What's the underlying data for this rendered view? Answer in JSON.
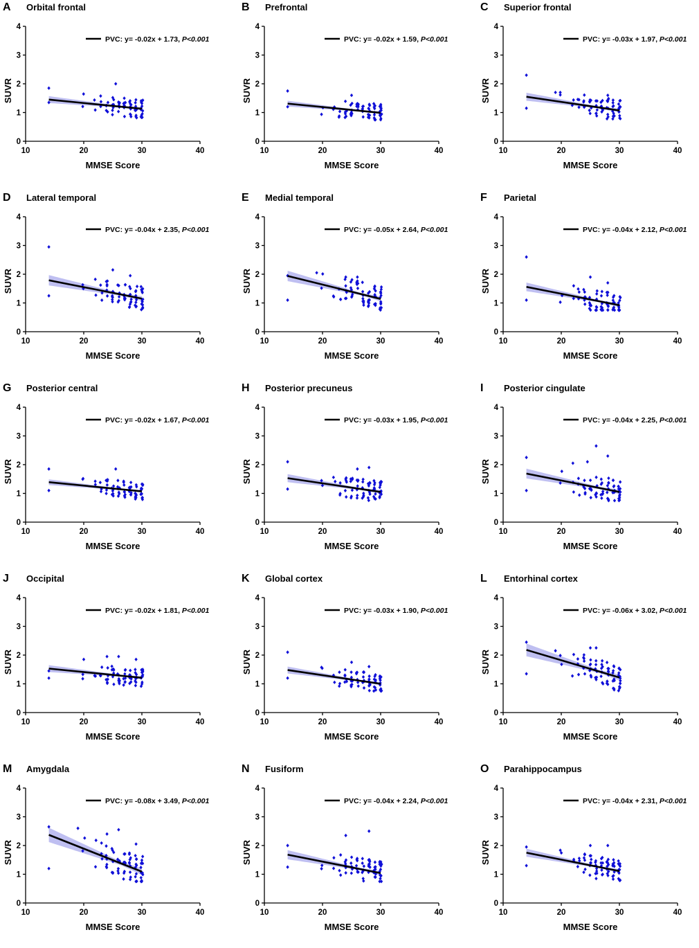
{
  "figure": {
    "label": "SUVR vs MMSE score by region (PVC)"
  },
  "chart_data": [
    {
      "id": "A",
      "type": "scatter",
      "title": "Orbital frontal",
      "xlabel": "MMSE Score",
      "ylabel": "SUVR",
      "xlim": [
        10,
        40
      ],
      "ylim": [
        0,
        4
      ],
      "xticks": [
        10,
        20,
        30,
        40
      ],
      "yticks": [
        0,
        1,
        2,
        3,
        4
      ],
      "legend": "PVC: y= -0.02x + 1.73, ",
      "p_label": "P<0.001",
      "fit": {
        "slope": -0.02,
        "intercept": 1.73
      },
      "band": 0.12,
      "outliers": [
        [
          14,
          1.85
        ],
        [
          14,
          1.35
        ],
        [
          25.5,
          2.0
        ]
      ]
    },
    {
      "id": "B",
      "type": "scatter",
      "title": "Prefrontal",
      "xlabel": "MMSE Score",
      "ylabel": "SUVR",
      "xlim": [
        10,
        40
      ],
      "ylim": [
        0,
        4
      ],
      "xticks": [
        10,
        20,
        30,
        40
      ],
      "yticks": [
        0,
        1,
        2,
        3,
        4
      ],
      "legend": "PVC: y= -0.02x + 1.59, ",
      "p_label": "P<0.001",
      "fit": {
        "slope": -0.02,
        "intercept": 1.59
      },
      "band": 0.1,
      "outliers": [
        [
          14,
          1.75
        ],
        [
          14,
          1.2
        ],
        [
          25,
          1.6
        ]
      ]
    },
    {
      "id": "C",
      "type": "scatter",
      "title": "Superior frontal",
      "xlabel": "MMSE Score",
      "ylabel": "SUVR",
      "xlim": [
        10,
        40
      ],
      "ylim": [
        0,
        4
      ],
      "xticks": [
        10,
        20,
        30,
        40
      ],
      "yticks": [
        0,
        1,
        2,
        3,
        4
      ],
      "legend": "PVC: y= -0.03x + 1.97, ",
      "p_label": "P<0.001",
      "fit": {
        "slope": -0.03,
        "intercept": 1.97
      },
      "band": 0.14,
      "outliers": [
        [
          14,
          2.3
        ],
        [
          14,
          1.15
        ],
        [
          19,
          1.7
        ],
        [
          28,
          1.6
        ]
      ]
    },
    {
      "id": "D",
      "type": "scatter",
      "title": "Lateral temporal",
      "xlabel": "MMSE Score",
      "ylabel": "SUVR",
      "xlim": [
        10,
        40
      ],
      "ylim": [
        0,
        4
      ],
      "xticks": [
        10,
        20,
        30,
        40
      ],
      "yticks": [
        0,
        1,
        2,
        3,
        4
      ],
      "legend": "PVC: y= -0.04x + 2.35, ",
      "p_label": "P<0.001",
      "fit": {
        "slope": -0.04,
        "intercept": 2.35
      },
      "band": 0.18,
      "outliers": [
        [
          14,
          2.95
        ],
        [
          14,
          1.25
        ],
        [
          25,
          2.15
        ],
        [
          28,
          1.95
        ]
      ]
    },
    {
      "id": "E",
      "type": "scatter",
      "title": "Medial temporal",
      "xlabel": "MMSE Score",
      "ylabel": "SUVR",
      "xlim": [
        10,
        40
      ],
      "ylim": [
        0,
        4
      ],
      "xticks": [
        10,
        20,
        30,
        40
      ],
      "yticks": [
        0,
        1,
        2,
        3,
        4
      ],
      "legend": "PVC: y= -0.05x + 2.64, ",
      "p_label": "P<0.001",
      "fit": {
        "slope": -0.05,
        "intercept": 2.64
      },
      "band": 0.18,
      "outliers": [
        [
          14,
          1.95
        ],
        [
          14,
          1.1
        ],
        [
          19,
          2.05
        ],
        [
          24,
          1.9
        ],
        [
          26,
          1.9
        ]
      ]
    },
    {
      "id": "F",
      "type": "scatter",
      "title": "Parietal",
      "xlabel": "MMSE Score",
      "ylabel": "SUVR",
      "xlim": [
        10,
        40
      ],
      "ylim": [
        0,
        4
      ],
      "xticks": [
        10,
        20,
        30,
        40
      ],
      "yticks": [
        0,
        1,
        2,
        3,
        4
      ],
      "legend": "PVC: y= -0.04x + 2.12, ",
      "p_label": "P<0.001",
      "fit": {
        "slope": -0.04,
        "intercept": 2.12
      },
      "band": 0.15,
      "outliers": [
        [
          14,
          2.6
        ],
        [
          14,
          1.1
        ],
        [
          25,
          1.9
        ],
        [
          28,
          1.7
        ]
      ]
    },
    {
      "id": "G",
      "type": "scatter",
      "title": "Posterior central",
      "xlabel": "MMSE Score",
      "ylabel": "SUVR",
      "xlim": [
        10,
        40
      ],
      "ylim": [
        0,
        4
      ],
      "xticks": [
        10,
        20,
        30,
        40
      ],
      "yticks": [
        0,
        1,
        2,
        3,
        4
      ],
      "legend": "PVC: y= -0.02x + 1.67, ",
      "p_label": "P<0.001",
      "fit": {
        "slope": -0.02,
        "intercept": 1.67
      },
      "band": 0.1,
      "outliers": [
        [
          14,
          1.85
        ],
        [
          14,
          1.1
        ],
        [
          25.5,
          1.85
        ]
      ]
    },
    {
      "id": "H",
      "type": "scatter",
      "title": "Posterior precuneus",
      "xlabel": "MMSE Score",
      "ylabel": "SUVR",
      "xlim": [
        10,
        40
      ],
      "ylim": [
        0,
        4
      ],
      "xticks": [
        10,
        20,
        30,
        40
      ],
      "yticks": [
        0,
        1,
        2,
        3,
        4
      ],
      "legend": "PVC: y= -0.03x + 1.95, ",
      "p_label": "P<0.001",
      "fit": {
        "slope": -0.03,
        "intercept": 1.95
      },
      "band": 0.14,
      "outliers": [
        [
          14,
          2.1
        ],
        [
          14,
          1.15
        ],
        [
          26,
          1.85
        ],
        [
          28,
          1.9
        ]
      ]
    },
    {
      "id": "I",
      "type": "scatter",
      "title": "Posterior cingulate",
      "xlabel": "MMSE Score",
      "ylabel": "SUVR",
      "xlim": [
        10,
        40
      ],
      "ylim": [
        0,
        4
      ],
      "xticks": [
        10,
        20,
        30,
        40
      ],
      "yticks": [
        0,
        1,
        2,
        3,
        4
      ],
      "legend": "PVC: y= -0.04x + 2.25, ",
      "p_label": "P<0.001",
      "fit": {
        "slope": -0.04,
        "intercept": 2.25
      },
      "band": 0.17,
      "outliers": [
        [
          14,
          2.25
        ],
        [
          14,
          1.1
        ],
        [
          22,
          2.05
        ],
        [
          24.5,
          2.1
        ],
        [
          26,
          2.65
        ],
        [
          28,
          2.3
        ]
      ]
    },
    {
      "id": "J",
      "type": "scatter",
      "title": "Occipital",
      "xlabel": "MMSE Score",
      "ylabel": "SUVR",
      "xlim": [
        10,
        40
      ],
      "ylim": [
        0,
        4
      ],
      "xticks": [
        10,
        20,
        30,
        40
      ],
      "yticks": [
        0,
        1,
        2,
        3,
        4
      ],
      "legend": "PVC: y= -0.02x + 1.81, ",
      "p_label": "P<0.001",
      "fit": {
        "slope": -0.02,
        "intercept": 1.81
      },
      "band": 0.12,
      "outliers": [
        [
          14,
          1.45
        ],
        [
          14,
          1.2
        ],
        [
          20,
          1.85
        ],
        [
          24,
          1.95
        ],
        [
          26,
          1.95
        ],
        [
          29,
          1.85
        ]
      ]
    },
    {
      "id": "K",
      "type": "scatter",
      "title": "Global cortex",
      "xlabel": "MMSE Score",
      "ylabel": "SUVR",
      "xlim": [
        10,
        40
      ],
      "ylim": [
        0,
        4
      ],
      "xticks": [
        10,
        20,
        30,
        40
      ],
      "yticks": [
        0,
        1,
        2,
        3,
        4
      ],
      "legend": "PVC: y= -0.03x + 1.90, ",
      "p_label": "P<0.001",
      "fit": {
        "slope": -0.03,
        "intercept": 1.9
      },
      "band": 0.12,
      "outliers": [
        [
          14,
          2.1
        ],
        [
          14,
          1.2
        ],
        [
          25,
          1.75
        ],
        [
          28,
          1.6
        ]
      ]
    },
    {
      "id": "L",
      "type": "scatter",
      "title": "Entorhinal cortex",
      "xlabel": "MMSE Score",
      "ylabel": "SUVR",
      "xlim": [
        10,
        40
      ],
      "ylim": [
        0,
        4
      ],
      "xticks": [
        10,
        20,
        30,
        40
      ],
      "yticks": [
        0,
        1,
        2,
        3,
        4
      ],
      "legend": "PVC: y= -0.06x + 3.02, ",
      "p_label": "P<0.001",
      "fit": {
        "slope": -0.06,
        "intercept": 3.02
      },
      "band": 0.22,
      "outliers": [
        [
          14,
          2.45
        ],
        [
          14,
          1.35
        ],
        [
          19,
          2.15
        ],
        [
          25,
          2.25
        ],
        [
          26,
          2.25
        ],
        [
          30,
          0.9
        ]
      ]
    },
    {
      "id": "M",
      "type": "scatter",
      "title": "Amygdala",
      "xlabel": "MMSE Score",
      "ylabel": "SUVR",
      "xlim": [
        10,
        40
      ],
      "ylim": [
        0,
        4
      ],
      "xticks": [
        10,
        20,
        30,
        40
      ],
      "yticks": [
        0,
        1,
        2,
        3,
        4
      ],
      "legend": "PVC: y= -0.08x + 3.49, ",
      "p_label": "P<0.001",
      "fit": {
        "slope": -0.08,
        "intercept": 3.49
      },
      "band": 0.25,
      "outliers": [
        [
          14,
          2.65
        ],
        [
          14,
          1.2
        ],
        [
          19,
          2.6
        ],
        [
          24,
          2.4
        ],
        [
          26,
          2.55
        ],
        [
          29,
          2.05
        ]
      ]
    },
    {
      "id": "N",
      "type": "scatter",
      "title": "Fusiform",
      "xlabel": "MMSE Score",
      "ylabel": "SUVR",
      "xlim": [
        10,
        40
      ],
      "ylim": [
        0,
        4
      ],
      "xticks": [
        10,
        20,
        30,
        40
      ],
      "yticks": [
        0,
        1,
        2,
        3,
        4
      ],
      "legend": "PVC: y= -0.04x + 2.24, ",
      "p_label": "P<0.001",
      "fit": {
        "slope": -0.04,
        "intercept": 2.24
      },
      "band": 0.16,
      "outliers": [
        [
          14,
          2.0
        ],
        [
          14,
          1.25
        ],
        [
          24,
          2.35
        ],
        [
          28,
          2.5
        ]
      ]
    },
    {
      "id": "O",
      "type": "scatter",
      "title": "Parahippocampus",
      "xlabel": "MMSE Score",
      "ylabel": "SUVR",
      "xlim": [
        10,
        40
      ],
      "ylim": [
        0,
        4
      ],
      "xticks": [
        10,
        20,
        30,
        40
      ],
      "yticks": [
        0,
        1,
        2,
        3,
        4
      ],
      "legend": "PVC: y= -0.04x + 2.31, ",
      "p_label": "P<0.001",
      "fit": {
        "slope": -0.04,
        "intercept": 2.31
      },
      "band": 0.14,
      "outliers": [
        [
          14,
          1.95
        ],
        [
          14,
          1.3
        ],
        [
          25,
          2.0
        ],
        [
          28,
          2.0
        ],
        [
          26,
          0.85
        ]
      ]
    }
  ]
}
